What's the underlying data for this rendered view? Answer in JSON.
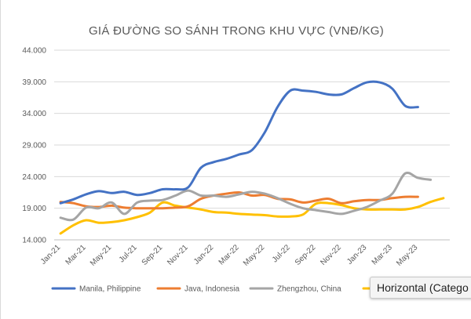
{
  "chart_data": {
    "type": "line",
    "title": "GIÁ ĐƯỜNG SO SÁNH TRONG KHU VỰC (VNĐ/KG)",
    "xlabel": "",
    "ylabel": "",
    "ylim": [
      14000,
      44000
    ],
    "yticks": [
      "14.000",
      "19.000",
      "24.000",
      "29.000",
      "34.000",
      "39.000",
      "44.000"
    ],
    "categories": [
      "Jan-21",
      "Feb-21",
      "Mar-21",
      "Apr-21",
      "May-21",
      "Jun-21",
      "Jul-21",
      "Aug-21",
      "Sep-21",
      "Oct-21",
      "Nov-21",
      "Dec-21",
      "Jan-22",
      "Feb-22",
      "Mar-22",
      "Apr-22",
      "May-22",
      "Jun-22",
      "Jul-22",
      "Aug-22",
      "Sep-22",
      "Oct-22",
      "Nov-22",
      "Dec-22",
      "Jan-23",
      "Feb-23",
      "Mar-23",
      "Apr-23",
      "May-23",
      "Jun-23",
      "Jul-23"
    ],
    "xtick_labels": [
      "Jan-21",
      "Mar-21",
      "May-21",
      "Jul-21",
      "Sep-21",
      "Nov-21",
      "Jan-22",
      "Mar-22",
      "May-22",
      "Jul-22",
      "Sep-22",
      "Nov-22",
      "Jan-23",
      "Mar-23",
      "May-23"
    ],
    "grid": true,
    "legend_position": "bottom",
    "series": [
      {
        "name": "Manila, Philippine",
        "color": "#4472C4",
        "values": [
          19800,
          20400,
          21200,
          21700,
          21400,
          21600,
          21100,
          21400,
          22000,
          22000,
          22300,
          25400,
          26300,
          26800,
          27500,
          28200,
          31000,
          35000,
          37600,
          37600,
          37400,
          37000,
          37000,
          38000,
          38900,
          38900,
          37900,
          35200,
          35000,
          null,
          null
        ]
      },
      {
        "name": "Java, Indonesia",
        "color": "#ED7D31",
        "values": [
          20000,
          19800,
          19300,
          19200,
          19400,
          19100,
          19000,
          19000,
          19000,
          19100,
          19300,
          20500,
          21000,
          21300,
          21500,
          21000,
          21100,
          20500,
          20400,
          19900,
          20200,
          20500,
          19800,
          20100,
          20300,
          20300,
          20600,
          20800,
          20800,
          null,
          null
        ]
      },
      {
        "name": "Zhengzhou, China",
        "color": "#A5A5A5",
        "values": [
          17500,
          17200,
          19100,
          19000,
          19900,
          18100,
          19900,
          20200,
          20300,
          21000,
          21800,
          21000,
          21000,
          20800,
          21200,
          21600,
          21300,
          20600,
          19700,
          19000,
          18700,
          18400,
          18100,
          18600,
          19200,
          20200,
          21300,
          24500,
          23800,
          23500,
          null
        ]
      },
      {
        "name": "Horizontal (Catego",
        "color": "#FFC000",
        "values": [
          15000,
          16300,
          17100,
          16700,
          16800,
          17100,
          17600,
          18300,
          19900,
          19400,
          19100,
          18800,
          18400,
          18300,
          18100,
          18000,
          17900,
          17700,
          17700,
          18000,
          19700,
          19800,
          19500,
          19000,
          18800,
          18800,
          18800,
          18800,
          19200,
          20000,
          20600
        ]
      }
    ]
  },
  "tooltip": {
    "text": "Horizontal (Catego"
  }
}
